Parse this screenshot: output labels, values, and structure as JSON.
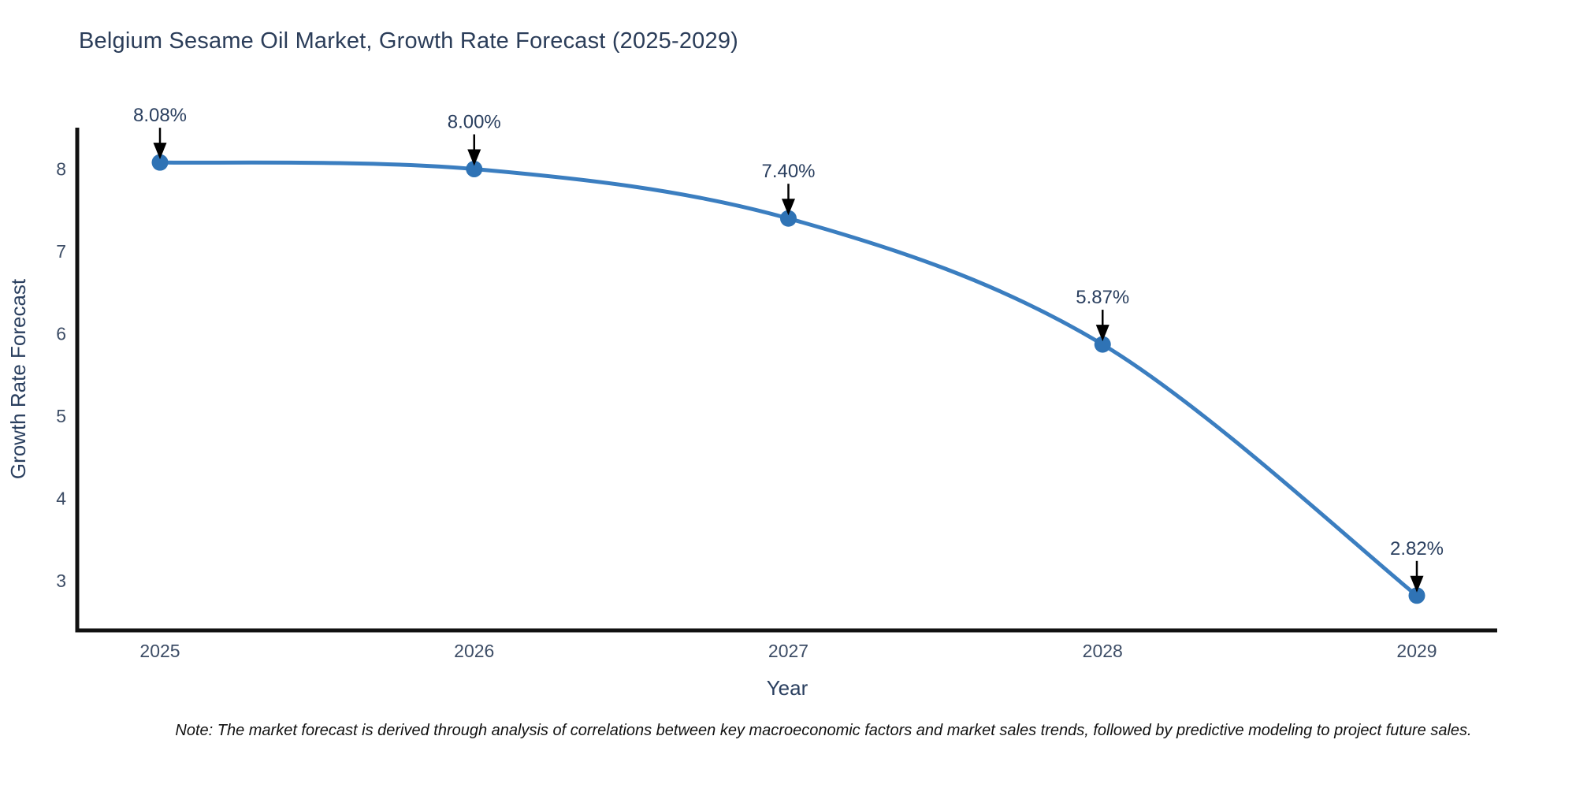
{
  "chart": {
    "title": "Belgium Sesame Oil Market, Growth Rate Forecast (2025-2029)",
    "note": "Note: The market forecast is derived through analysis of correlations between key macroeconomic factors and market sales trends, followed by predictive modeling to project future sales."
  },
  "chart_data": {
    "type": "line",
    "title": "Belgium Sesame Oil Market, Growth Rate Forecast (2025-2029)",
    "xlabel": "Year",
    "ylabel": "Growth Rate Forecast",
    "x": [
      "2025",
      "2026",
      "2027",
      "2028",
      "2029"
    ],
    "values": [
      8.08,
      8.0,
      7.4,
      5.87,
      2.82
    ],
    "point_labels": [
      "8.08%",
      "8.00%",
      "7.40%",
      "5.87%",
      "2.82%"
    ],
    "yticks": [
      3,
      4,
      5,
      6,
      7,
      8
    ],
    "ylim": [
      2.4,
      8.5
    ],
    "grid": false,
    "legend": false,
    "line_smooth": true,
    "colors": {
      "line": "#3b7ec0",
      "marker": "#2f73b5",
      "axis": "#111111",
      "tick_text": "#3d4d66",
      "label_text": "#2a3f5f",
      "annotation_arrow": "#000000"
    }
  }
}
